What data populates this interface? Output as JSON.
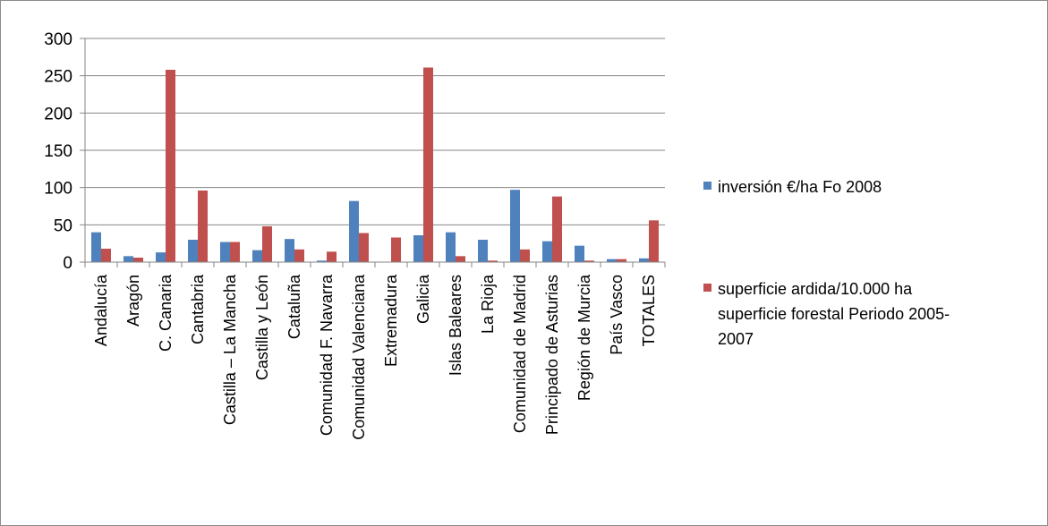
{
  "chart_data": {
    "type": "bar",
    "categories": [
      "Andalucía",
      "Aragón",
      "C. Canaria",
      "Cantabria",
      "Castilla – La Mancha",
      "Castilla y León",
      "Cataluña",
      "Comunidad F. Navarra",
      "Comunidad Valenciana",
      "Extremadura",
      "Galicia",
      "Islas Baleares",
      "La Rioja",
      "Comunidad de Madrid",
      "Principado de Asturias",
      "Región de Murcia",
      "País Vasco",
      "TOTALES"
    ],
    "series": [
      {
        "name": "inversión €/ha Fo 2008",
        "color": "#4f81bd",
        "values": [
          40,
          8,
          13,
          30,
          27,
          16,
          31,
          2,
          82,
          0,
          36,
          40,
          30,
          97,
          28,
          22,
          4,
          5
        ]
      },
      {
        "name": "superficie ardida/10.000 ha superficie forestal Periodo 2005-2007",
        "color": "#c0504d",
        "values": [
          18,
          6,
          258,
          96,
          27,
          48,
          17,
          14,
          39,
          33,
          261,
          8,
          2,
          17,
          88,
          2,
          4,
          56
        ]
      }
    ],
    "legend_lines": [
      [
        "inversión €/ha Fo 2008"
      ],
      [
        "superficie ardida/10.000 ha",
        "superficie forestal  Periodo 2005-",
        "2007"
      ]
    ],
    "yticks": [
      "0",
      "50",
      "100",
      "150",
      "200",
      "250",
      "300"
    ],
    "ylim": [
      0,
      300
    ],
    "grid": true,
    "legend_position": "right",
    "title": "",
    "xlabel": "",
    "ylabel": ""
  }
}
